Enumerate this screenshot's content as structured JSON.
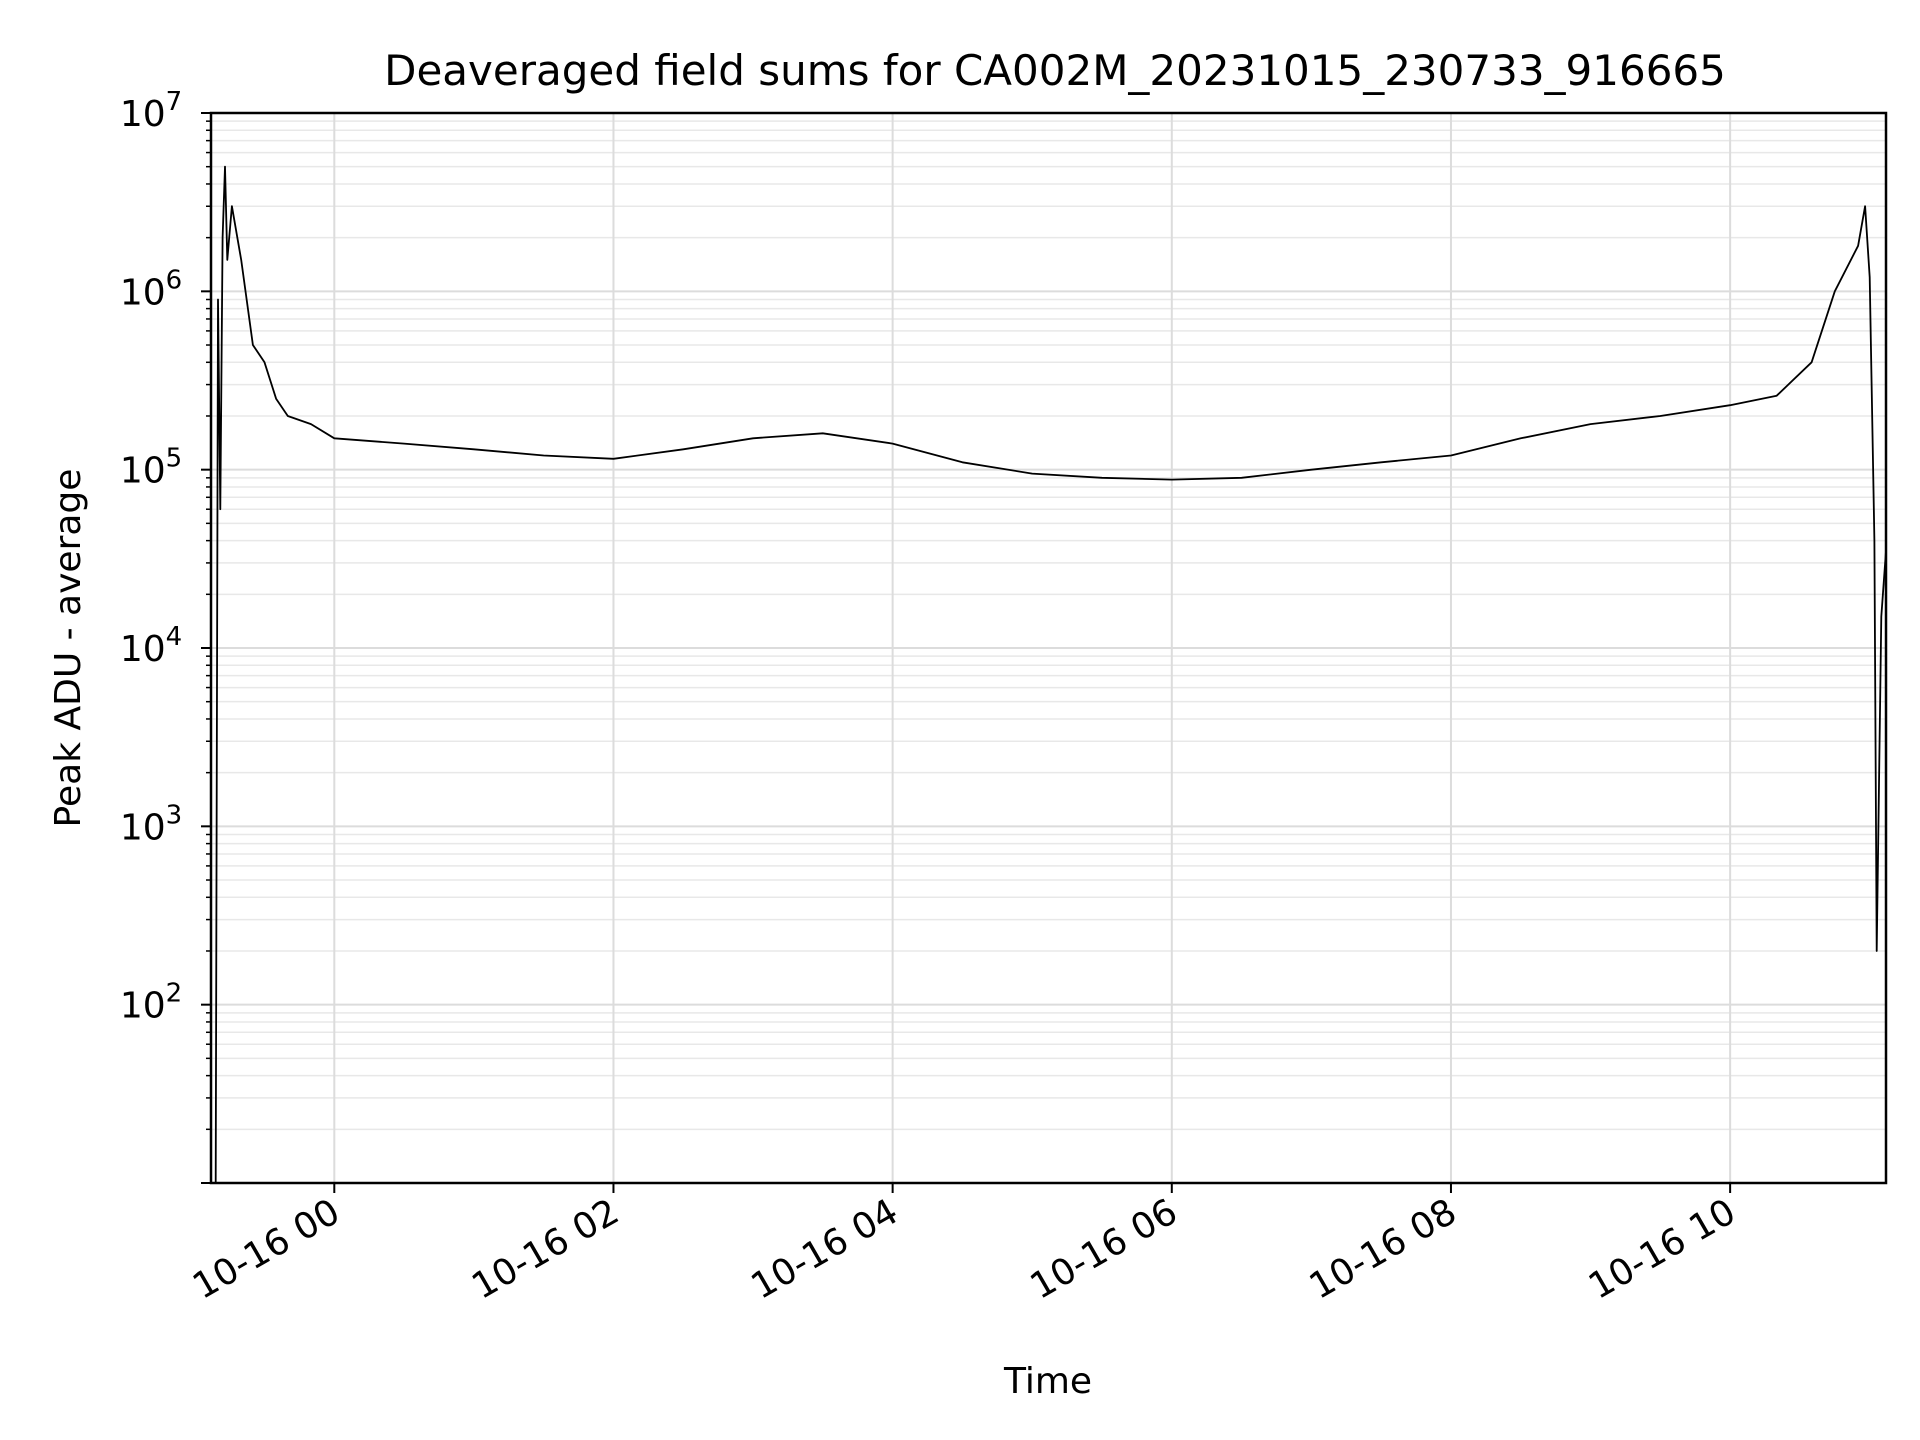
{
  "chart_data": {
    "type": "line",
    "title": "Deaveraged field sums for CA002M_20231015_230733_916665",
    "xlabel": "Time",
    "ylabel": "Peak ADU - average",
    "yscale": "log",
    "grid": true,
    "x_ticks": [
      "10-16 00",
      "10-16 02",
      "10-16 04",
      "10-16 06",
      "10-16 08",
      "10-16 10"
    ],
    "x_tick_values": [
      "2023-10-16 00:00",
      "2023-10-16 02:00",
      "2023-10-16 04:00",
      "2023-10-16 06:00",
      "2023-10-16 08:00",
      "2023-10-16 10:00"
    ],
    "xlim": [
      "2023-10-15 23:07",
      "2023-10-16 11:07"
    ],
    "y_ticks": [
      {
        "base": "10",
        "exp": "2",
        "value": 100
      },
      {
        "base": "10",
        "exp": "3",
        "value": 1000
      },
      {
        "base": "10",
        "exp": "4",
        "value": 10000
      },
      {
        "base": "10",
        "exp": "5",
        "value": 100000
      },
      {
        "base": "10",
        "exp": "6",
        "value": 1000000
      },
      {
        "base": "10",
        "exp": "7",
        "value": 10000000
      }
    ],
    "ylim": [
      10,
      10000000
    ],
    "line_color": "#000000",
    "series": [
      {
        "x": [
          "2023-10-15 23:09",
          "2023-10-15 23:10",
          "2023-10-15 23:11",
          "2023-10-15 23:12",
          "2023-10-15 23:13",
          "2023-10-15 23:14",
          "2023-10-15 23:16",
          "2023-10-15 23:20",
          "2023-10-15 23:25",
          "2023-10-15 23:30",
          "2023-10-15 23:35",
          "2023-10-15 23:40",
          "2023-10-15 23:50",
          "2023-10-16 00:00",
          "2023-10-16 00:30",
          "2023-10-16 01:00",
          "2023-10-16 01:30",
          "2023-10-16 02:00",
          "2023-10-16 02:30",
          "2023-10-16 03:00",
          "2023-10-16 03:30",
          "2023-10-16 04:00",
          "2023-10-16 04:30",
          "2023-10-16 05:00",
          "2023-10-16 05:30",
          "2023-10-16 06:00",
          "2023-10-16 06:30",
          "2023-10-16 07:00",
          "2023-10-16 07:30",
          "2023-10-16 08:00",
          "2023-10-16 08:30",
          "2023-10-16 09:00",
          "2023-10-16 09:30",
          "2023-10-16 10:00",
          "2023-10-16 10:20",
          "2023-10-16 10:35",
          "2023-10-16 10:45",
          "2023-10-16 10:55",
          "2023-10-16 10:58",
          "2023-10-16 11:00",
          "2023-10-16 11:02",
          "2023-10-16 11:03",
          "2023-10-16 11:05",
          "2023-10-16 11:07"
        ],
        "y": [
          10,
          900000,
          60000,
          2000000,
          5000000,
          1500000,
          3000000,
          1500000,
          500000,
          400000,
          250000,
          200000,
          180000,
          150000,
          140000,
          130000,
          120000,
          115000,
          130000,
          150000,
          160000,
          140000,
          110000,
          95000,
          90000,
          88000,
          90000,
          100000,
          110000,
          120000,
          150000,
          180000,
          200000,
          230000,
          260000,
          400000,
          1000000,
          1800000,
          3000000,
          1200000,
          40000,
          200,
          15000,
          35000
        ]
      }
    ]
  }
}
